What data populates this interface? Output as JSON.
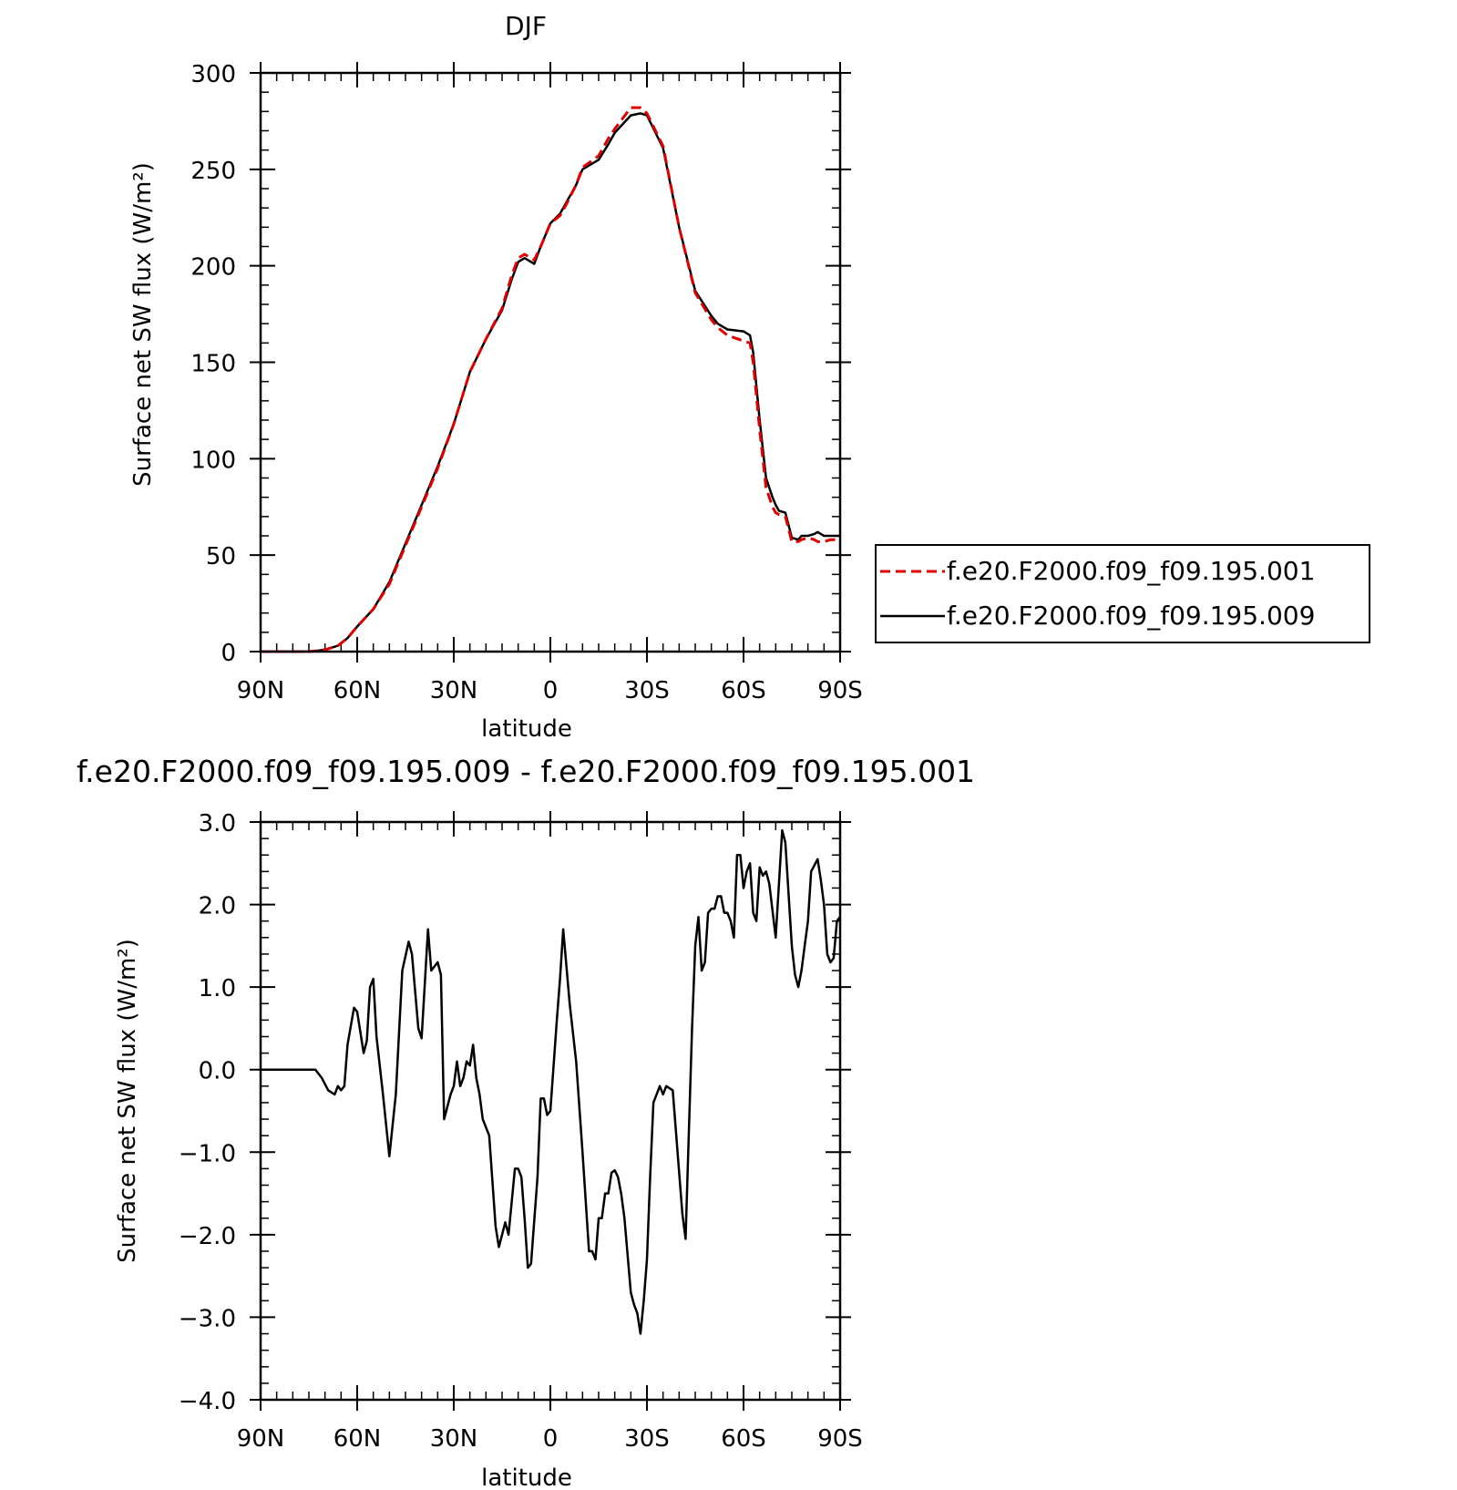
{
  "chart_data": [
    {
      "type": "line",
      "title": "DJF",
      "xlabel": "latitude",
      "ylabel": "Surface net SW flux (W/m²)",
      "xlim": [
        90,
        -90
      ],
      "ylim": [
        0,
        300
      ],
      "x_ticks": [
        90,
        60,
        30,
        0,
        -30,
        -60,
        -90
      ],
      "x_tick_labels": [
        "90N",
        "60N",
        "30N",
        "0",
        "30S",
        "60S",
        "90S"
      ],
      "y_ticks": [
        0,
        50,
        100,
        150,
        200,
        250,
        300
      ],
      "y_tick_labels": [
        "0",
        "50",
        "100",
        "150",
        "200",
        "250",
        "300"
      ],
      "legend": {
        "placement": "right, outside plot"
      },
      "series": [
        {
          "name": "f.e20.F2000.f09_f09.195.001",
          "color": "#e00000",
          "dash": "dashed",
          "x": [
            90,
            85,
            80,
            75,
            72,
            70,
            66,
            63,
            60,
            55,
            50,
            45,
            40,
            35,
            30,
            25,
            20,
            15,
            12,
            10,
            8,
            7,
            5,
            3,
            0,
            -3,
            -5,
            -8,
            -10,
            -15,
            -18,
            -20,
            -25,
            -28,
            -30,
            -35,
            -40,
            -45,
            -50,
            -52,
            -55,
            -60,
            -62,
            -63,
            -65,
            -67,
            -69,
            -70,
            -71,
            -73,
            -75,
            -77,
            -78,
            -80,
            -82,
            -83,
            -85,
            -87,
            -90
          ],
          "y": [
            0,
            0,
            0,
            0,
            0.5,
            1,
            3,
            7,
            13,
            22,
            35,
            55,
            75,
            95,
            118,
            145,
            162,
            178,
            195,
            204,
            206,
            205,
            203,
            210,
            222,
            226,
            232,
            242,
            251,
            257,
            266,
            271,
            282,
            282,
            279,
            262,
            220,
            186,
            172,
            168,
            164,
            161,
            160,
            150,
            115,
            85,
            75,
            72,
            71,
            70,
            57,
            57,
            58,
            59,
            58,
            57,
            57,
            58,
            58
          ]
        },
        {
          "name": "f.e20.F2000.f09_f09.195.009",
          "color": "#000000",
          "dash": "solid",
          "x": [
            90,
            85,
            80,
            75,
            72,
            70,
            66,
            63,
            60,
            55,
            50,
            45,
            40,
            35,
            30,
            25,
            20,
            15,
            12,
            10,
            8,
            7,
            5,
            3,
            0,
            -3,
            -5,
            -8,
            -10,
            -15,
            -18,
            -20,
            -25,
            -28,
            -30,
            -35,
            -40,
            -45,
            -50,
            -52,
            -55,
            -60,
            -62,
            -63,
            -65,
            -67,
            -69,
            -70,
            -71,
            -73,
            -75,
            -77,
            -78,
            -80,
            -82,
            -83,
            -85,
            -87,
            -90
          ],
          "y": [
            0,
            0,
            0,
            0,
            0.5,
            1,
            3,
            7,
            13,
            22,
            36,
            56,
            76,
            96,
            118,
            145,
            162,
            177,
            193,
            202,
            204,
            203,
            201,
            210,
            222,
            227,
            233,
            242,
            250,
            255,
            263,
            269,
            278,
            279,
            278,
            261,
            220,
            187,
            174,
            170,
            167,
            166,
            164,
            155,
            120,
            90,
            80,
            76,
            73,
            72,
            59,
            58,
            60,
            60,
            61,
            62,
            60,
            60,
            60
          ]
        }
      ]
    },
    {
      "type": "line",
      "title": "f.e20.F2000.f09_f09.195.009 - f.e20.F2000.f09_f09.195.001",
      "xlabel": "latitude",
      "ylabel": "Surface net SW flux (W/m²)",
      "xlim": [
        90,
        -90
      ],
      "ylim": [
        -4,
        3
      ],
      "x_ticks": [
        90,
        60,
        30,
        0,
        -30,
        -60,
        -90
      ],
      "x_tick_labels": [
        "90N",
        "60N",
        "30N",
        "0",
        "30S",
        "60S",
        "90S"
      ],
      "y_ticks": [
        3,
        2,
        1,
        0,
        -1,
        -2,
        -3,
        -4
      ],
      "y_tick_labels": [
        "3.0",
        "2.0",
        "1.0",
        "0.0",
        "−1.0",
        "−2.0",
        "−3.0",
        "−4.0"
      ],
      "series": [
        {
          "color": "#000000",
          "dash": "solid",
          "x": [
            90,
            80,
            73,
            71,
            69,
            67,
            66,
            65,
            64,
            63,
            61,
            60,
            58,
            57,
            56,
            55,
            54,
            52,
            50,
            48,
            46,
            44,
            43,
            41,
            40,
            38,
            37,
            36,
            35,
            34,
            33,
            31,
            30,
            29,
            28,
            27,
            26,
            25,
            24,
            23,
            22,
            21,
            19,
            17,
            16,
            15,
            14,
            13,
            12,
            11,
            10,
            9,
            8,
            7,
            6,
            4,
            3,
            2,
            1,
            0,
            -2,
            -3,
            -4,
            -6,
            -8,
            -10,
            -12,
            -13,
            -14,
            -15,
            -16,
            -17,
            -18,
            -19,
            -20,
            -21,
            -22,
            -23,
            -25,
            -26,
            -27,
            -28,
            -29,
            -30,
            -31,
            -32,
            -33,
            -34,
            -35,
            -36,
            -38,
            -41,
            -42,
            -44,
            -45,
            -46,
            -47,
            -48,
            -49,
            -50,
            -51,
            -52,
            -53,
            -54,
            -55,
            -56,
            -57,
            -58,
            -59,
            -60,
            -61,
            -62,
            -63,
            -64,
            -65,
            -66,
            -67,
            -68,
            -70,
            -72,
            -73,
            -75,
            -76,
            -77,
            -78,
            -79,
            -80,
            -81,
            -83,
            -84,
            -85,
            -86,
            -87,
            -88,
            -89,
            -90
          ],
          "y": [
            0,
            0,
            0,
            -0.1,
            -0.25,
            -0.3,
            -0.2,
            -0.25,
            -0.2,
            0.3,
            0.75,
            0.7,
            0.2,
            0.35,
            1.0,
            1.1,
            0.4,
            -0.3,
            -1.05,
            -0.3,
            1.2,
            1.55,
            1.4,
            0.5,
            0.38,
            1.7,
            1.2,
            1.25,
            1.3,
            1.15,
            -0.6,
            -0.3,
            -0.2,
            0.1,
            -0.2,
            -0.1,
            0.1,
            0.05,
            0.3,
            -0.1,
            -0.3,
            -0.6,
            -0.8,
            -1.9,
            -2.15,
            -2.0,
            -1.85,
            -2.0,
            -1.6,
            -1.2,
            -1.2,
            -1.3,
            -1.8,
            -2.4,
            -2.35,
            -1.3,
            -0.35,
            -0.35,
            -0.55,
            -0.5,
            0.6,
            1.1,
            1.7,
            0.8,
            0.1,
            -1.0,
            -2.2,
            -2.2,
            -2.3,
            -1.8,
            -1.8,
            -1.5,
            -1.5,
            -1.25,
            -1.22,
            -1.3,
            -1.5,
            -1.8,
            -2.7,
            -2.85,
            -2.95,
            -3.2,
            -2.8,
            -2.3,
            -1.3,
            -0.4,
            -0.3,
            -0.2,
            -0.3,
            -0.2,
            -0.25,
            -1.75,
            -2.05,
            0.5,
            1.5,
            1.85,
            1.2,
            1.3,
            1.9,
            1.95,
            1.95,
            2.1,
            2.1,
            1.9,
            1.9,
            1.8,
            1.6,
            2.6,
            2.6,
            2.2,
            2.4,
            2.5,
            1.9,
            1.8,
            2.45,
            2.35,
            2.4,
            2.25,
            1.6,
            2.9,
            2.75,
            1.5,
            1.15,
            1.0,
            1.2,
            1.5,
            1.8,
            2.4,
            2.55,
            2.3,
            2.0,
            1.4,
            1.3,
            1.35,
            1.8,
            1.85
          ]
        }
      ]
    }
  ]
}
